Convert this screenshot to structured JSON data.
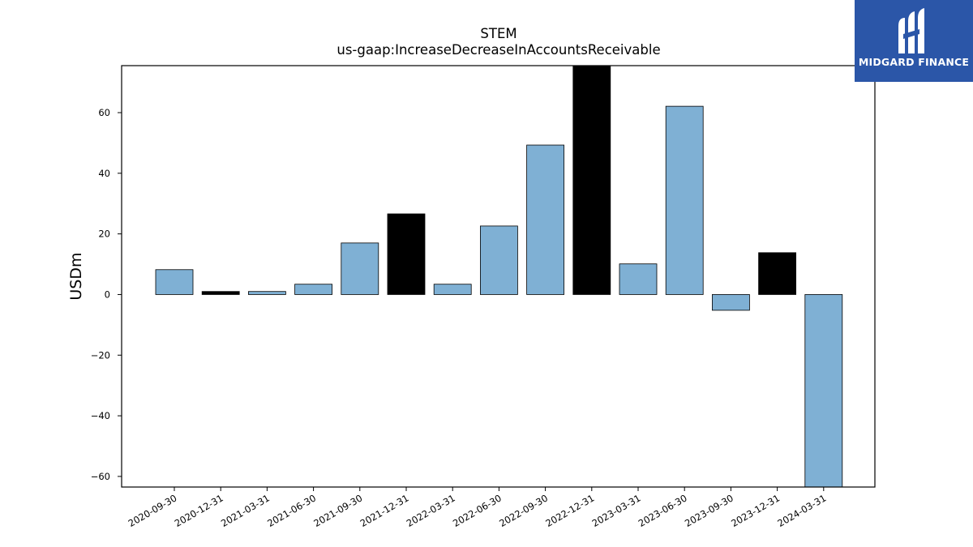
{
  "logo": {
    "text": "MIDGARD FINANCE"
  },
  "chart_data": {
    "type": "bar",
    "title": "STEM",
    "subtitle": "us-gaap:IncreaseDecreaseInAccountsReceivable",
    "xlabel": "",
    "ylabel": "USDm",
    "ylim": [
      -63.5,
      75.5
    ],
    "yticks": [
      -60,
      -40,
      -20,
      0,
      20,
      40,
      60
    ],
    "grid": false,
    "categories": [
      "2020-09-30",
      "2020-12-31",
      "2021-03-31",
      "2021-06-30",
      "2021-09-30",
      "2021-12-31",
      "2022-03-31",
      "2022-06-30",
      "2022-09-30",
      "2022-12-31",
      "2023-03-31",
      "2023-06-30",
      "2023-09-30",
      "2023-12-31",
      "2024-03-31"
    ],
    "values": [
      8.2,
      1.0,
      1.0,
      3.4,
      17.0,
      26.6,
      3.4,
      22.6,
      49.3,
      75.5,
      10.1,
      62.1,
      -5.2,
      13.8,
      -63.5
    ],
    "bar_colors": [
      "#7fb0d4",
      "#000000",
      "#7fb0d4",
      "#7fb0d4",
      "#7fb0d4",
      "#000000",
      "#7fb0d4",
      "#7fb0d4",
      "#7fb0d4",
      "#000000",
      "#7fb0d4",
      "#7fb0d4",
      "#7fb0d4",
      "#000000",
      "#7fb0d4"
    ]
  }
}
